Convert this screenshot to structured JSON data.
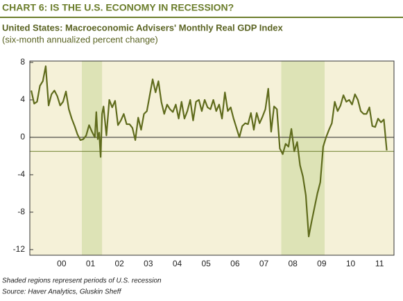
{
  "chart_data": {
    "type": "line",
    "title": "CHART 6: IS THE U.S. ECONOMY IN RECESSION?",
    "subtitle": "United States: Macroeconomic Advisers' Monthly Real GDP Index",
    "subtitle2": "(six-month annualized percent change)",
    "footnote": "Shaded regions represent periods of U.S. recession",
    "source": "Source: Haver Analytics, Gluskin Sheff",
    "x": [
      1999.45,
      1999.55,
      1999.65,
      1999.75,
      1999.85,
      1999.95,
      2000.05,
      2000.15,
      2000.25,
      2000.35,
      2000.45,
      2000.55,
      2000.65,
      2000.75,
      2000.85,
      2000.95,
      2001.05,
      2001.15,
      2001.25,
      2001.35,
      2001.45,
      2001.55,
      2001.65,
      2001.7,
      2001.75,
      2001.8,
      2001.85,
      2001.9,
      2001.95,
      2002.05,
      2002.15,
      2002.25,
      2002.35,
      2002.45,
      2002.55,
      2002.65,
      2002.75,
      2002.85,
      2002.95,
      2003.05,
      2003.15,
      2003.25,
      2003.35,
      2003.45,
      2003.55,
      2003.65,
      2003.75,
      2003.85,
      2003.95,
      2004.05,
      2004.15,
      2004.25,
      2004.35,
      2004.45,
      2004.55,
      2004.65,
      2004.75,
      2004.85,
      2004.95,
      2005.05,
      2005.15,
      2005.25,
      2005.35,
      2005.45,
      2005.55,
      2005.65,
      2005.75,
      2005.85,
      2005.95,
      2006.05,
      2006.15,
      2006.25,
      2006.35,
      2006.45,
      2006.55,
      2006.65,
      2006.75,
      2006.85,
      2006.95,
      2007.05,
      2007.15,
      2007.25,
      2007.35,
      2007.45,
      2007.55,
      2007.65,
      2007.75,
      2007.85,
      2007.95,
      2008.05,
      2008.15,
      2008.25,
      2008.35,
      2008.45,
      2008.55,
      2008.65,
      2008.75,
      2008.85,
      2008.95,
      2009.05,
      2009.15,
      2009.25,
      2009.35,
      2009.45,
      2009.55,
      2009.65,
      2009.75,
      2009.85,
      2009.95,
      2010.05,
      2010.15,
      2010.25,
      2010.35,
      2010.45,
      2010.55,
      2010.65,
      2010.75,
      2010.85,
      2010.95,
      2011.05,
      2011.15,
      2011.25,
      2011.35,
      2011.45,
      2011.55,
      2011.65,
      2011.75
    ],
    "series": [
      {
        "color": "#5f6b1c",
        "values": [
          5.0,
          3.6,
          3.8,
          5.5,
          6.0,
          7.6,
          3.4,
          4.6,
          5.0,
          4.4,
          3.4,
          3.8,
          4.9,
          3.0,
          2.0,
          1.2,
          0.3,
          -0.3,
          -0.2,
          0.2,
          1.3,
          0.6,
          0.0,
          2.7,
          -0.2,
          0.5,
          -2.1,
          2.5,
          3.3,
          0.2,
          4.0,
          3.2,
          3.9,
          1.3,
          1.8,
          2.5,
          1.4,
          1.4,
          1.0,
          -0.3,
          2.1,
          0.8,
          2.5,
          2.8,
          4.5,
          6.2,
          4.8,
          6.0,
          3.8,
          2.5,
          3.5,
          3.0,
          2.7,
          3.5,
          2.0,
          3.8,
          2.0,
          2.8,
          4.0,
          1.8,
          3.8,
          4.0,
          2.8,
          4.0,
          3.2,
          3.0,
          4.0,
          2.8,
          3.5,
          2.0,
          4.8,
          2.8,
          3.2,
          2.0,
          1.0,
          0.0,
          1.2,
          1.5,
          1.4,
          2.6,
          0.8,
          2.6,
          1.5,
          2.2,
          3.0,
          5.2,
          0.6,
          3.3,
          3.0,
          -1.2,
          -1.8,
          -0.7,
          -1.0,
          0.9,
          -1.5,
          -0.5,
          -3.0,
          -4.2,
          -6.2,
          -10.6,
          -9.0,
          -7.5,
          -6.0,
          -4.8,
          -1.0,
          0.0,
          0.8,
          1.5,
          3.8,
          2.8,
          3.4,
          4.5,
          3.8,
          4.0,
          3.5,
          4.6,
          4.0,
          2.8,
          2.5,
          2.5,
          3.2,
          1.2,
          1.1,
          2.0,
          1.6,
          1.9,
          -1.4
        ]
      }
    ],
    "recessions": [
      [
        2001.2,
        2001.9
      ],
      [
        2008.1,
        2009.6
      ]
    ],
    "reference_line": -1.5,
    "xlim": [
      1999.4,
      2012.0
    ],
    "xticks": [
      {
        "value": 2000.5,
        "label": "00"
      },
      {
        "value": 2001.5,
        "label": "01"
      },
      {
        "value": 2002.5,
        "label": "02"
      },
      {
        "value": 2003.5,
        "label": "03"
      },
      {
        "value": 2004.5,
        "label": "04"
      },
      {
        "value": 2005.5,
        "label": "05"
      },
      {
        "value": 2006.5,
        "label": "06"
      },
      {
        "value": 2007.5,
        "label": "07"
      },
      {
        "value": 2008.5,
        "label": "08"
      },
      {
        "value": 2009.5,
        "label": "09"
      },
      {
        "value": 2010.5,
        "label": "10"
      },
      {
        "value": 2011.5,
        "label": "11"
      }
    ],
    "ylim": [
      -12.6,
      8.15
    ],
    "yticks": [
      8,
      4,
      0,
      -4,
      -8,
      -12
    ]
  }
}
